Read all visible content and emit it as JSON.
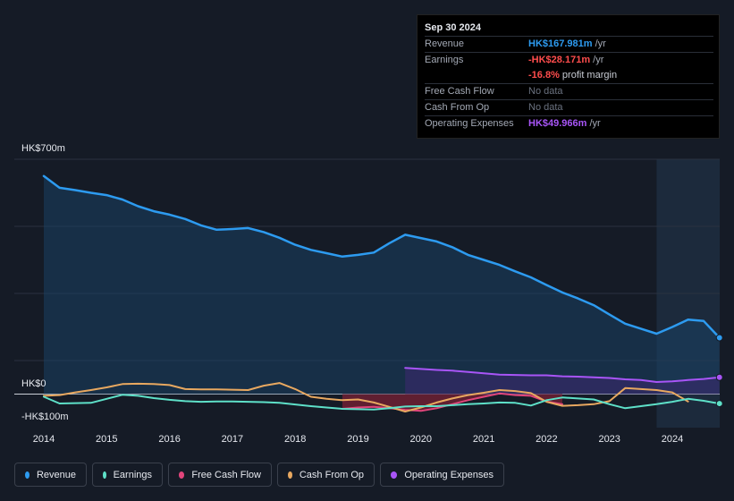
{
  "tooltip": {
    "date": "Sep 30 2024",
    "rows": {
      "revenue": {
        "label": "Revenue",
        "value": "HK$167.981m",
        "unit": "/yr"
      },
      "earnings": {
        "label": "Earnings",
        "value": "-HK$28.171m",
        "unit": "/yr",
        "margin_value": "-16.8%",
        "margin_text": "profit margin"
      },
      "fcf": {
        "label": "Free Cash Flow",
        "value": "No data"
      },
      "cfo": {
        "label": "Cash From Op",
        "value": "No data"
      },
      "opex": {
        "label": "Operating Expenses",
        "value": "HK$49.966m",
        "unit": "/yr"
      }
    }
  },
  "colors": {
    "revenue": "#2d9bf0",
    "earnings": "#5ee0c8",
    "fcf": "#e0457b",
    "cfo": "#e8a860",
    "opex": "#a855f7"
  },
  "legend": [
    {
      "key": "revenue",
      "label": "Revenue"
    },
    {
      "key": "earnings",
      "label": "Earnings"
    },
    {
      "key": "fcf",
      "label": "Free Cash Flow"
    },
    {
      "key": "cfo",
      "label": "Cash From Op"
    },
    {
      "key": "opex",
      "label": "Operating Expenses"
    }
  ],
  "chart_data": {
    "type": "line",
    "title": "",
    "ylabel_top": "HK$700m",
    "ylabel_zero": "HK$0",
    "ylabel_bottom": "-HK$100m",
    "ylim": [
      -100,
      700
    ],
    "x_ticks": [
      "2014",
      "2015",
      "2016",
      "2017",
      "2018",
      "2019",
      "2020",
      "2021",
      "2022",
      "2023",
      "2024"
    ],
    "series": [
      {
        "name": "Revenue",
        "key": "revenue",
        "x": [
          2014.0,
          2014.25,
          2014.5,
          2014.75,
          2015.0,
          2015.25,
          2015.5,
          2015.75,
          2016.0,
          2016.25,
          2016.5,
          2016.75,
          2017.0,
          2017.25,
          2017.5,
          2017.75,
          2018.0,
          2018.25,
          2018.5,
          2018.75,
          2019.0,
          2019.25,
          2019.5,
          2019.75,
          2020.0,
          2020.25,
          2020.5,
          2020.75,
          2021.0,
          2021.25,
          2021.5,
          2021.75,
          2022.0,
          2022.25,
          2022.5,
          2022.75,
          2023.0,
          2023.25,
          2023.5,
          2023.75,
          2024.0,
          2024.25,
          2024.5,
          2024.75
        ],
        "values": [
          650,
          615,
          608,
          600,
          593,
          580,
          560,
          545,
          535,
          522,
          503,
          490,
          492,
          495,
          483,
          466,
          445,
          430,
          420,
          410,
          415,
          422,
          450,
          475,
          465,
          455,
          438,
          415,
          400,
          385,
          366,
          348,
          325,
          303,
          285,
          265,
          237,
          210,
          195,
          180,
          200,
          222,
          218,
          167.981
        ]
      },
      {
        "name": "Earnings",
        "key": "earnings",
        "x": [
          2014.0,
          2014.25,
          2014.5,
          2014.75,
          2015.0,
          2015.25,
          2015.5,
          2015.75,
          2016.0,
          2016.25,
          2016.5,
          2016.75,
          2017.0,
          2017.25,
          2017.5,
          2017.75,
          2018.0,
          2018.25,
          2018.5,
          2018.75,
          2019.0,
          2019.25,
          2019.5,
          2019.75,
          2020.0,
          2020.25,
          2020.5,
          2020.75,
          2021.0,
          2021.25,
          2021.5,
          2021.75,
          2022.0,
          2022.25,
          2022.5,
          2022.75,
          2023.0,
          2023.25,
          2023.5,
          2023.75,
          2024.0,
          2024.25,
          2024.5,
          2024.75
        ],
        "values": [
          -8,
          -28,
          -27,
          -26,
          -14,
          -2,
          -5,
          -12,
          -17,
          -21,
          -23,
          -22,
          -22,
          -23,
          -24,
          -26,
          -31,
          -36,
          -40,
          -44,
          -45,
          -46,
          -42,
          -37,
          -36,
          -36,
          -33,
          -30,
          -28,
          -25,
          -26,
          -34,
          -18,
          -10,
          -13,
          -16,
          -30,
          -42,
          -36,
          -30,
          -23,
          -14,
          -20,
          -28.171
        ]
      },
      {
        "name": "Free Cash Flow",
        "key": "fcf",
        "x": [
          2018.75,
          2019.0,
          2019.25,
          2019.5,
          2019.75,
          2020.0,
          2020.25,
          2020.5,
          2020.75,
          2021.0,
          2021.25,
          2021.5,
          2021.75,
          2022.0,
          2022.25
        ],
        "values": [
          -44,
          -40,
          -38,
          -42,
          -47,
          -50,
          -42,
          -30,
          -18,
          -8,
          2,
          -3,
          -5,
          -22,
          -30
        ]
      },
      {
        "name": "Cash From Op",
        "key": "cfo",
        "x": [
          2014.0,
          2014.25,
          2014.5,
          2014.75,
          2015.0,
          2015.25,
          2015.5,
          2015.75,
          2016.0,
          2016.25,
          2016.5,
          2016.75,
          2017.0,
          2017.25,
          2017.5,
          2017.75,
          2018.0,
          2018.25,
          2018.5,
          2018.75,
          2019.0,
          2019.25,
          2019.5,
          2019.75,
          2020.0,
          2020.25,
          2020.5,
          2020.75,
          2021.0,
          2021.25,
          2021.5,
          2021.75,
          2022.0,
          2022.25,
          2022.5,
          2022.75,
          2023.0,
          2023.25,
          2023.5,
          2023.75,
          2024.0,
          2024.25
        ],
        "values": [
          -5,
          -3,
          5,
          12,
          20,
          30,
          31,
          30,
          27,
          15,
          14,
          14,
          13,
          12,
          25,
          33,
          15,
          -8,
          -14,
          -18,
          -16,
          -25,
          -38,
          -52,
          -40,
          -25,
          -13,
          -3,
          4,
          12,
          9,
          3,
          -23,
          -35,
          -33,
          -30,
          -21,
          18,
          15,
          12,
          5,
          -22
        ]
      },
      {
        "name": "Operating Expenses",
        "key": "opex",
        "x": [
          2019.75,
          2020.0,
          2020.25,
          2020.5,
          2020.75,
          2021.0,
          2021.25,
          2021.5,
          2021.75,
          2022.0,
          2022.25,
          2022.5,
          2022.75,
          2023.0,
          2023.25,
          2023.5,
          2023.75,
          2024.0,
          2024.25,
          2024.5,
          2024.75
        ],
        "values": [
          78,
          75,
          72,
          70,
          66,
          62,
          58,
          57,
          56,
          56,
          53,
          52,
          50,
          48,
          44,
          42,
          36,
          38,
          42,
          45,
          49.966
        ]
      }
    ]
  }
}
